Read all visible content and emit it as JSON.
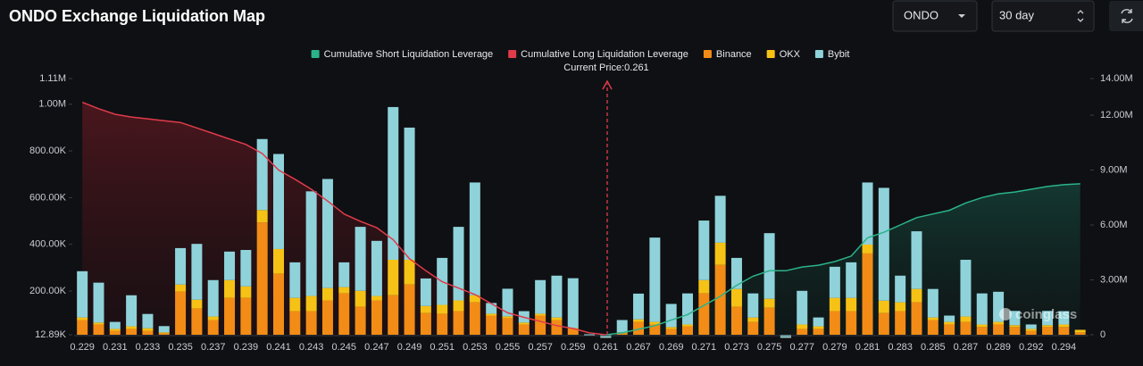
{
  "header": {
    "title": "ONDO Exchange Liquidation Map",
    "symbol": "ONDO",
    "range": "30 day"
  },
  "chart_data": {
    "type": "bar",
    "stacked": true,
    "annotation": "Current Price:0.261",
    "watermark": "coinglass",
    "categories": [
      "0.229",
      null,
      "0.231",
      null,
      "0.233",
      null,
      "0.235",
      null,
      "0.237",
      null,
      "0.239",
      null,
      "0.241",
      null,
      "0.243",
      null,
      "0.245",
      null,
      "0.247",
      null,
      "0.249",
      null,
      "0.251",
      null,
      "0.253",
      null,
      "0.255",
      null,
      "0.257",
      null,
      "0.259",
      null,
      "0.261",
      null,
      "0.267",
      null,
      "0.269",
      null,
      "0.271",
      null,
      "0.273",
      null,
      "0.275",
      null,
      "0.277",
      null,
      "0.279",
      null,
      "0.281",
      null,
      "0.283",
      null,
      "0.285",
      null,
      "0.287",
      null,
      "0.289",
      null,
      "0.292",
      null,
      "0.294",
      null
    ],
    "ylim": [
      12890,
      1110000
    ],
    "yticks": [
      {
        "value": 12890,
        "label": "12.89K"
      },
      {
        "value": 200000,
        "label": "200.00K"
      },
      {
        "value": 400000,
        "label": "400.00K"
      },
      {
        "value": 600000,
        "label": "600.00K"
      },
      {
        "value": 800000,
        "label": "800.00K"
      },
      {
        "value": 1000000,
        "label": "1.00M"
      },
      {
        "value": 1110000,
        "label": "1.11M"
      }
    ],
    "y2lim": [
      0,
      14000000
    ],
    "y2ticks": [
      0,
      {
        "value": 3000000,
        "label": "3.00M"
      },
      {
        "value": 6000000,
        "label": "6.00M"
      },
      {
        "value": 9000000,
        "label": "9.00M"
      },
      {
        "value": 12000000,
        "label": "12.00M"
      },
      {
        "value": 14000000,
        "label": "14.00M"
      }
    ],
    "grid": false,
    "series": [
      {
        "name": "Cumulative Short Liquidation Leverage",
        "type": "line",
        "axis": "y2",
        "color": "#2bb389",
        "values": [
          null,
          null,
          null,
          null,
          null,
          null,
          null,
          null,
          null,
          null,
          null,
          null,
          null,
          null,
          null,
          null,
          null,
          null,
          null,
          null,
          null,
          null,
          null,
          null,
          null,
          null,
          null,
          null,
          null,
          null,
          null,
          null,
          0,
          100000,
          300000,
          500000,
          800000,
          1100000,
          1600000,
          2100000,
          2700000,
          3200000,
          3500000,
          3500000,
          3700000,
          3800000,
          4000000,
          4300000,
          5300000,
          5600000,
          6000000,
          6400000,
          6600000,
          6800000,
          7200000,
          7500000,
          7700000,
          7800000,
          7950000,
          8100000,
          8200000,
          8250000
        ]
      },
      {
        "name": "Cumulative Long Liquidation Leverage",
        "type": "line",
        "axis": "y2",
        "color": "#e03b4b",
        "values": [
          12700000,
          12350000,
          12050000,
          11900000,
          11800000,
          11700000,
          11600000,
          11300000,
          11000000,
          10700000,
          10400000,
          9900000,
          9000000,
          8500000,
          7950000,
          7300000,
          6600000,
          6200000,
          5850000,
          5200000,
          4150000,
          3500000,
          2900000,
          2550000,
          2200000,
          1700000,
          1200000,
          950000,
          730000,
          500000,
          340000,
          100000,
          0,
          null,
          null,
          null,
          null,
          null,
          null,
          null,
          null,
          null,
          null,
          null,
          null,
          null,
          null,
          null,
          null,
          null,
          null,
          null,
          null,
          null,
          null,
          null,
          null,
          null,
          null,
          null,
          null,
          null
        ]
      },
      {
        "name": "Binance",
        "type": "bar",
        "color": "#f28c16",
        "values": [
          76000,
          57000,
          30000,
          38000,
          30000,
          19000,
          198000,
          125000,
          76000,
          171000,
          171000,
          494000,
          274000,
          114000,
          114000,
          160000,
          190000,
          133000,
          160000,
          182000,
          228000,
          106000,
          103000,
          114000,
          152000,
          95000,
          84000,
          57000,
          95000,
          76000,
          38000,
          11000,
          0,
          19000,
          68000,
          57000,
          38000,
          49000,
          190000,
          312000,
          133000,
          68000,
          129000,
          0,
          38000,
          38000,
          114000,
          114000,
          361000,
          106000,
          114000,
          152000,
          76000,
          57000,
          68000,
          46000,
          57000,
          46000,
          30000,
          46000,
          46000,
          23000
        ]
      },
      {
        "name": "OKX",
        "type": "bar",
        "color": "#f6c215",
        "values": [
          11000,
          8000,
          8000,
          11000,
          11000,
          4000,
          30000,
          38000,
          15000,
          76000,
          49000,
          53000,
          106000,
          57000,
          65000,
          53000,
          27000,
          68000,
          19000,
          152000,
          106000,
          30000,
          38000,
          46000,
          30000,
          8000,
          8000,
          8000,
          8000,
          11000,
          4000,
          0,
          0,
          4000,
          11000,
          11000,
          8000,
          8000,
          57000,
          95000,
          76000,
          19000,
          38000,
          0,
          19000,
          11000,
          57000,
          57000,
          38000,
          53000,
          38000,
          57000,
          11000,
          11000,
          23000,
          11000,
          11000,
          8000,
          8000,
          8000,
          11000,
          11000
        ]
      },
      {
        "name": "Bybit",
        "type": "bar",
        "color": "#8fd2da",
        "values": [
          198000,
          171000,
          30000,
          133000,
          61000,
          27000,
          156000,
          239000,
          156000,
          122000,
          156000,
          304000,
          407000,
          152000,
          448000,
          467000,
          106000,
          274000,
          236000,
          654000,
          566000,
          118000,
          201000,
          315000,
          483000,
          46000,
          118000,
          49000,
          144000,
          179000,
          213000,
          4000,
          0,
          53000,
          110000,
          361000,
          99000,
          133000,
          255000,
          201000,
          133000,
          103000,
          281000,
          0,
          144000,
          38000,
          133000,
          152000,
          266000,
          483000,
          114000,
          247000,
          122000,
          27000,
          243000,
          133000,
          129000,
          61000,
          19000,
          61000,
          57000,
          0
        ]
      }
    ]
  }
}
